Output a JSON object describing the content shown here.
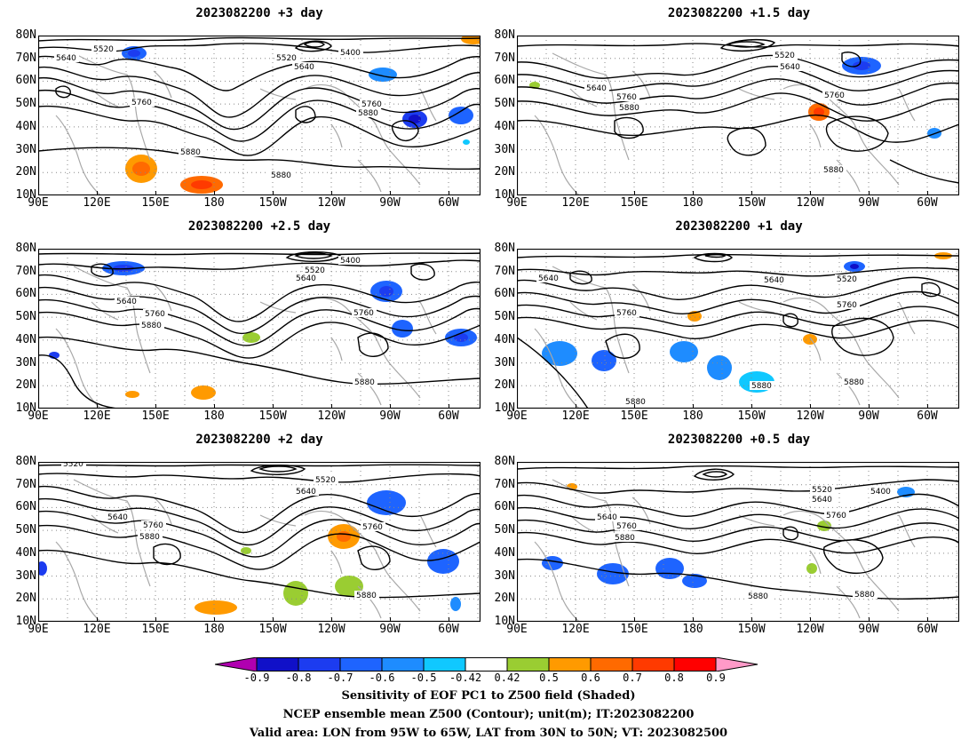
{
  "panels": [
    {
      "id": "p1",
      "title": "2023082200  +3 day"
    },
    {
      "id": "p2",
      "title": "2023082200  +1.5 day"
    },
    {
      "id": "p3",
      "title": "2023082200  +2.5 day"
    },
    {
      "id": "p4",
      "title": "2023082200  +1 day"
    },
    {
      "id": "p5",
      "title": "2023082200  +2 day"
    },
    {
      "id": "p6",
      "title": "2023082200  +0.5 day"
    }
  ],
  "axes": {
    "lat_labels": [
      "80N",
      "70N",
      "60N",
      "50N",
      "40N",
      "30N",
      "20N",
      "10N"
    ],
    "lon_labels": [
      "90E",
      "120E",
      "150E",
      "180",
      "150W",
      "120W",
      "90W",
      "60W"
    ]
  },
  "colorbar": {
    "labels": [
      "-0.9",
      "-0.8",
      "-0.7",
      "-0.6",
      "-0.5",
      "-0.42",
      "0.42",
      "0.5",
      "0.6",
      "0.7",
      "0.8",
      "0.9"
    ],
    "colors": [
      "#b000b0",
      "#1010c8",
      "#1c3cf0",
      "#1e64ff",
      "#1e8cff",
      "#10c8ff",
      "#ffffff",
      "#9acd32",
      "#ff9a00",
      "#ff6a00",
      "#ff3a00",
      "#ff0000",
      "#ff9ac8"
    ]
  },
  "captions": {
    "line1": "Sensitivity of EOF PC1 to Z500 field (Shaded)",
    "line2": "NCEP ensemble mean Z500 (Contour); unit(m); IT:2023082200",
    "line3": "Valid area: LON from 95W to 65W, LAT from 30N to 50N; VT: 2023082500"
  },
  "contour_labels": {
    "p1": [
      "5520",
      "5640",
      "5520",
      "5640",
      "5400",
      "5760",
      "5760",
      "5880",
      "5880",
      "5880"
    ],
    "p2": [
      "5520",
      "5640",
      "5640",
      "5760",
      "5880",
      "5760",
      "5880"
    ],
    "p3": [
      "5400",
      "5520",
      "5640",
      "5640",
      "5760",
      "5880",
      "5760",
      "5880"
    ],
    "p4": [
      "5640",
      "5640",
      "5520",
      "5760",
      "5760",
      "5880",
      "5880",
      "5880"
    ],
    "p5": [
      "5520",
      "5520",
      "5640",
      "5640",
      "5760",
      "5880",
      "5760",
      "5880"
    ],
    "p6": [
      "5520",
      "5400",
      "5640",
      "5640",
      "5760",
      "5880",
      "5760",
      "5880",
      "5880"
    ]
  }
}
